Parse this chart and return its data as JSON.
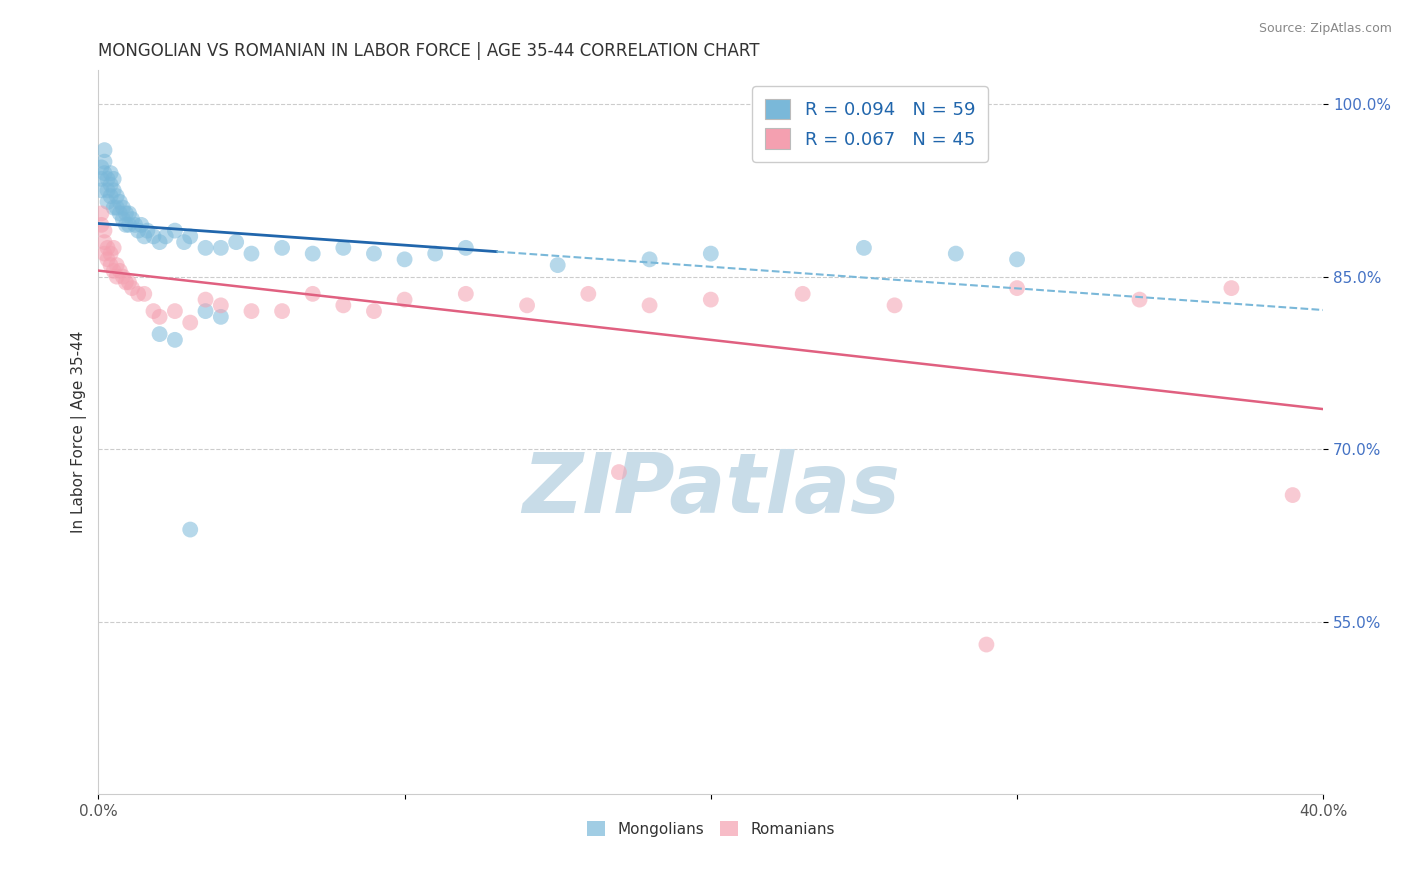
{
  "title": "MONGOLIAN VS ROMANIAN IN LABOR FORCE | AGE 35-44 CORRELATION CHART",
  "source_text": "Source: ZipAtlas.com",
  "ylabel": "In Labor Force | Age 35-44",
  "xlim": [
    0.0,
    0.4
  ],
  "ylim": [
    0.4,
    1.03
  ],
  "xtick_vals": [
    0.0,
    0.1,
    0.2,
    0.3,
    0.4
  ],
  "xtick_labels": [
    "0.0%",
    "",
    "",
    "",
    "40.0%"
  ],
  "ytick_vals": [
    0.55,
    0.7,
    0.85,
    1.0
  ],
  "ytick_labels": [
    "55.0%",
    "70.0%",
    "85.0%",
    "100.0%"
  ],
  "mongolian_color": "#7ab8d9",
  "romanian_color": "#f4a0b0",
  "mongolian_line_solid_color": "#2166ac",
  "mongolian_line_dash_color": "#7ab8d9",
  "romanian_line_color": "#e06080",
  "legend_line1": "R = 0.094   N = 59",
  "legend_line2": "R = 0.067   N = 45",
  "title_fontsize": 12,
  "label_fontsize": 11,
  "tick_fontsize": 11,
  "watermark_text": "ZIPatlas",
  "watermark_color": "#c8dce8",
  "watermark_fontsize": 60,
  "mongolian_x": [
    0.001,
    0.001,
    0.001,
    0.002,
    0.002,
    0.002,
    0.003,
    0.003,
    0.003,
    0.004,
    0.004,
    0.004,
    0.005,
    0.005,
    0.005,
    0.006,
    0.006,
    0.007,
    0.007,
    0.008,
    0.008,
    0.009,
    0.009,
    0.01,
    0.01,
    0.011,
    0.012,
    0.013,
    0.014,
    0.015,
    0.016,
    0.018,
    0.02,
    0.022,
    0.025,
    0.028,
    0.03,
    0.035,
    0.04,
    0.045,
    0.05,
    0.06,
    0.07,
    0.08,
    0.09,
    0.1,
    0.11,
    0.12,
    0.15,
    0.18,
    0.2,
    0.25,
    0.02,
    0.025,
    0.03,
    0.035,
    0.04,
    0.28,
    0.3
  ],
  "mongolian_y": [
    0.945,
    0.935,
    0.925,
    0.96,
    0.95,
    0.94,
    0.935,
    0.925,
    0.915,
    0.94,
    0.93,
    0.92,
    0.935,
    0.925,
    0.91,
    0.92,
    0.91,
    0.915,
    0.905,
    0.91,
    0.9,
    0.905,
    0.895,
    0.905,
    0.895,
    0.9,
    0.895,
    0.89,
    0.895,
    0.885,
    0.89,
    0.885,
    0.88,
    0.885,
    0.89,
    0.88,
    0.885,
    0.875,
    0.875,
    0.88,
    0.87,
    0.875,
    0.87,
    0.875,
    0.87,
    0.865,
    0.87,
    0.875,
    0.86,
    0.865,
    0.87,
    0.875,
    0.8,
    0.795,
    0.63,
    0.82,
    0.815,
    0.87,
    0.865
  ],
  "romanian_x": [
    0.001,
    0.001,
    0.002,
    0.002,
    0.002,
    0.003,
    0.003,
    0.004,
    0.004,
    0.005,
    0.005,
    0.006,
    0.006,
    0.007,
    0.008,
    0.009,
    0.01,
    0.011,
    0.013,
    0.015,
    0.018,
    0.02,
    0.025,
    0.03,
    0.035,
    0.04,
    0.05,
    0.06,
    0.07,
    0.08,
    0.09,
    0.1,
    0.12,
    0.14,
    0.16,
    0.18,
    0.2,
    0.23,
    0.26,
    0.3,
    0.34,
    0.37,
    0.17,
    0.29,
    0.39
  ],
  "romanian_y": [
    0.905,
    0.895,
    0.89,
    0.88,
    0.87,
    0.875,
    0.865,
    0.87,
    0.86,
    0.875,
    0.855,
    0.86,
    0.85,
    0.855,
    0.85,
    0.845,
    0.845,
    0.84,
    0.835,
    0.835,
    0.82,
    0.815,
    0.82,
    0.81,
    0.83,
    0.825,
    0.82,
    0.82,
    0.835,
    0.825,
    0.82,
    0.83,
    0.835,
    0.825,
    0.835,
    0.825,
    0.83,
    0.835,
    0.825,
    0.84,
    0.83,
    0.84,
    0.68,
    0.53,
    0.66
  ]
}
